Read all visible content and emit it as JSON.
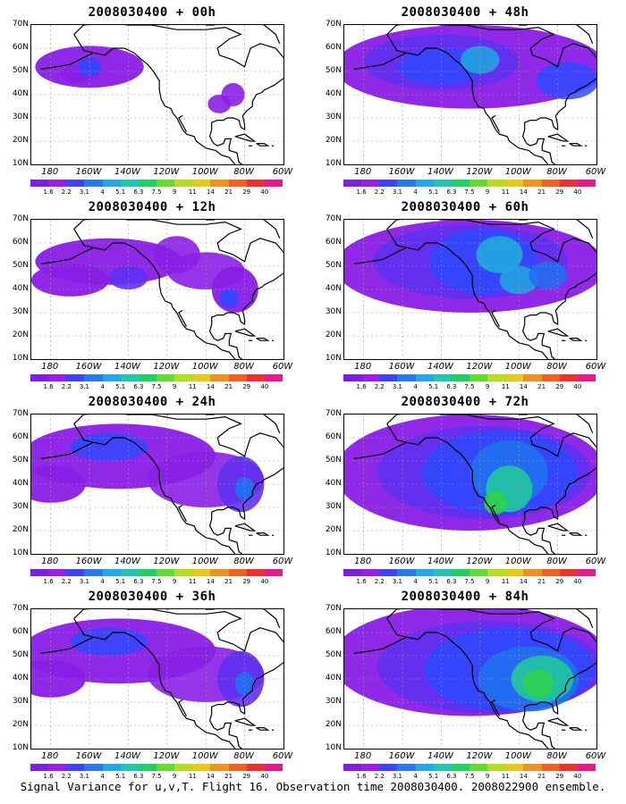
{
  "panels": [
    {
      "title": "2008030400 + 00h",
      "level": 0
    },
    {
      "title": "2008030400 + 48h",
      "level": 3
    },
    {
      "title": "2008030400 + 12h",
      "level": 1
    },
    {
      "title": "2008030400 + 60h",
      "level": 4
    },
    {
      "title": "2008030400 + 24h",
      "level": 2
    },
    {
      "title": "2008030400 + 72h",
      "level": 5
    },
    {
      "title": "2008030400 + 36h",
      "level": 2
    },
    {
      "title": "2008030400 + 84h",
      "level": 6
    }
  ],
  "lat_labels": [
    "70N",
    "60N",
    "50N",
    "40N",
    "30N",
    "20N",
    "10N"
  ],
  "lon_labels": [
    "180",
    "160W",
    "140W",
    "120W",
    "100W",
    "80W",
    "60W"
  ],
  "colorbar": {
    "colors": [
      "#7b1fe0",
      "#9a1ee8",
      "#4040ff",
      "#2878f0",
      "#20a8e8",
      "#20c8b0",
      "#20d060",
      "#60dc30",
      "#b8dc20",
      "#e8c818",
      "#f09020",
      "#f06020",
      "#f03030",
      "#e81a8a"
    ],
    "ticks": [
      "1.6",
      "2.2",
      "3.1",
      "4",
      "5.1",
      "6.3",
      "7.5",
      "9",
      "11",
      "14",
      "21",
      "29",
      "40"
    ]
  },
  "footer": "Signal Variance for u,v,T. Flight 16. Observation time 2008030400. 2008022900 ensemble."
}
